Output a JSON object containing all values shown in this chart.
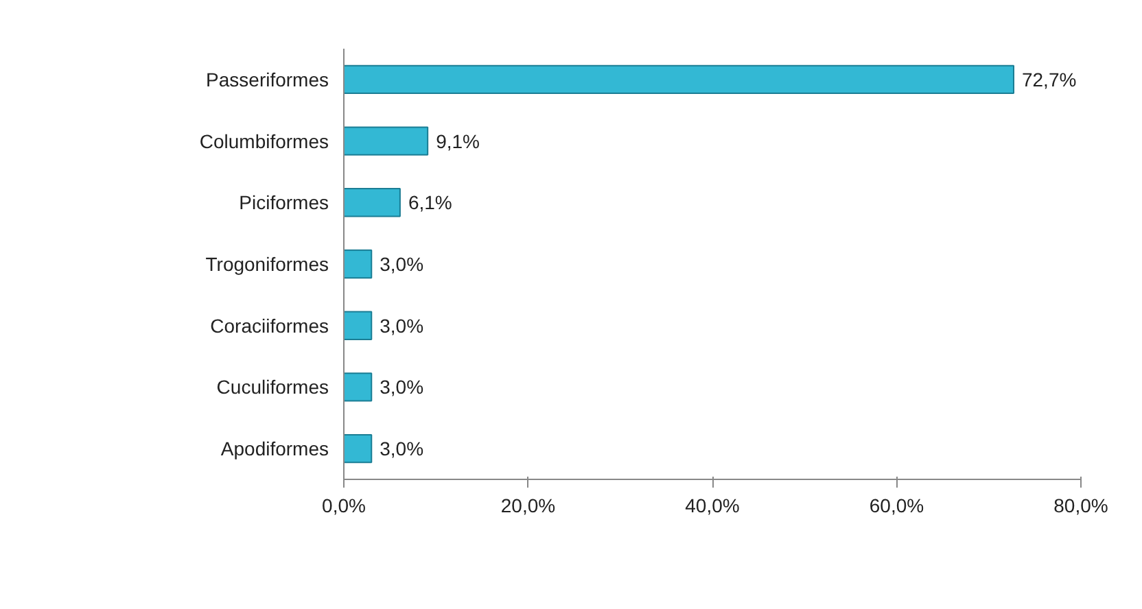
{
  "chart_data": {
    "type": "bar",
    "orientation": "horizontal",
    "categories": [
      "Passeriformes",
      "Columbiformes",
      "Piciformes",
      "Trogoniformes",
      "Coraciiformes",
      "Cuculiformes",
      "Apodiformes"
    ],
    "values": [
      72.7,
      9.1,
      6.1,
      3.0,
      3.0,
      3.0,
      3.0
    ],
    "value_labels": [
      "72,7%",
      "9,1%",
      "6,1%",
      "3,0%",
      "3,0%",
      "3,0%",
      "3,0%"
    ],
    "color": "#33b8d4",
    "xlim": [
      0,
      80
    ],
    "xticks": [
      {
        "value": 0,
        "label": "0,0%"
      },
      {
        "value": 20,
        "label": "20,0%"
      },
      {
        "value": 40,
        "label": "40,0%"
      },
      {
        "value": 60,
        "label": "60,0%"
      },
      {
        "value": 80,
        "label": "80,0%"
      }
    ]
  }
}
